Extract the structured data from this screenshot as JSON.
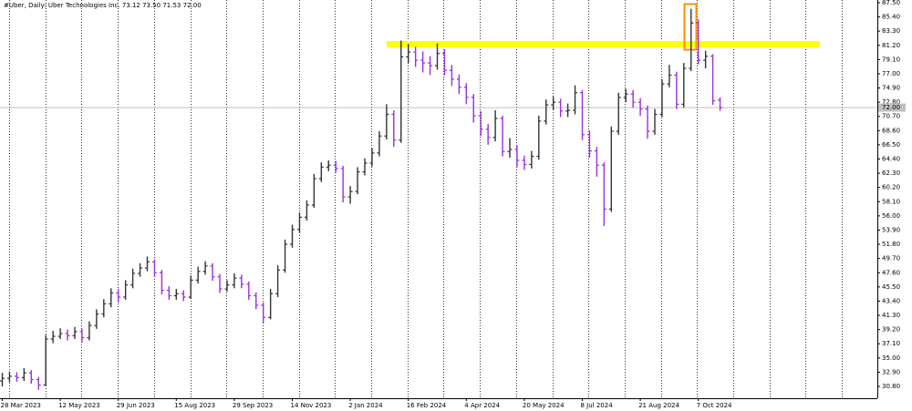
{
  "chart_data": {
    "type": "ohlc",
    "title": "#Uber, Daily:  Uber Technologies Inc.  73.12 73.50 71.53 72.00",
    "categories": [
      "28 Mar 2023",
      null,
      null,
      null,
      null,
      null,
      null,
      null,
      "12 May 2023",
      null,
      null,
      null,
      null,
      null,
      null,
      null,
      "29 Jun 2023",
      null,
      null,
      null,
      null,
      null,
      null,
      null,
      "15 Aug 2023",
      null,
      null,
      null,
      null,
      null,
      null,
      null,
      "29 Sep 2023",
      null,
      null,
      null,
      null,
      null,
      null,
      null,
      "14 Nov 2023",
      null,
      null,
      null,
      null,
      null,
      null,
      null,
      "2 Jan 2024",
      null,
      null,
      null,
      null,
      null,
      null,
      null,
      "16 Feb 2024",
      null,
      null,
      null,
      null,
      null,
      null,
      null,
      "4 Apr 2024",
      null,
      null,
      null,
      null,
      null,
      null,
      null,
      "20 May 2024",
      null,
      null,
      null,
      null,
      null,
      null,
      null,
      "8 Jul 2024",
      null,
      null,
      null,
      null,
      null,
      null,
      null,
      "21 Aug 2024",
      null,
      null,
      null,
      null,
      null,
      null,
      null,
      "7 Oct 2024",
      null,
      null,
      null
    ],
    "series": {
      "up_color": "#333333",
      "down_color": "#9b30d9",
      "open": [
        31.6,
        32.0,
        32.3,
        32.1,
        32.8,
        31.8,
        31.0,
        37.8,
        38.2,
        38.6,
        38.3,
        38.9,
        38.0,
        39.8,
        41.5,
        43.0,
        44.6,
        44.0,
        45.8,
        47.5,
        48.3,
        49.2,
        47.6,
        45.0,
        44.2,
        44.5,
        44.0,
        46.5,
        47.8,
        48.6,
        47.0,
        45.2,
        45.8,
        46.8,
        45.9,
        44.2,
        42.8,
        41.0,
        44.5,
        48.0,
        51.8,
        54.0,
        55.8,
        57.6,
        61.5,
        63.2,
        63.5,
        63.0,
        58.8,
        59.6,
        62.5,
        63.8,
        65.3,
        67.8,
        71.0,
        67.2,
        79.5,
        80.2,
        79.0,
        78.6,
        78.2,
        80.0,
        77.5,
        76.2,
        75.0,
        73.5,
        70.8,
        68.8,
        67.6,
        70.4,
        65.5,
        65.8,
        64.2,
        63.6,
        64.8,
        70.0,
        72.4,
        72.8,
        71.5,
        71.6,
        74.2,
        68.0,
        65.6,
        63.5,
        57.0,
        68.5,
        73.5,
        74.0,
        72.8,
        71.8,
        68.5,
        71.0,
        75.5,
        76.8,
        72.5,
        77.8,
        84.5,
        79.0,
        79.6,
        73.12
      ],
      "high": [
        32.8,
        33.0,
        32.9,
        33.5,
        33.2,
        32.2,
        38.4,
        39.0,
        39.4,
        39.2,
        39.6,
        39.3,
        40.4,
        42.2,
        43.7,
        45.3,
        45.2,
        46.5,
        48.2,
        49.0,
        50.0,
        49.6,
        48.0,
        45.6,
        45.2,
        45.0,
        47.2,
        48.5,
        49.3,
        49.0,
        47.4,
        46.5,
        47.5,
        47.3,
        46.3,
        44.7,
        43.2,
        45.2,
        48.7,
        52.5,
        54.7,
        56.5,
        58.3,
        62.2,
        63.9,
        64.2,
        64.1,
        63.4,
        60.4,
        63.2,
        64.5,
        66.0,
        68.5,
        72.5,
        71.6,
        81.9,
        81.4,
        81.0,
        80.3,
        79.6,
        81.5,
        80.6,
        78.3,
        76.9,
        75.6,
        74.0,
        71.5,
        69.6,
        71.6,
        70.8,
        67.5,
        66.4,
        64.9,
        65.6,
        70.8,
        73.2,
        73.6,
        73.3,
        72.6,
        75.3,
        74.6,
        68.6,
        66.2,
        63.9,
        69.2,
        74.2,
        74.8,
        74.6,
        73.4,
        72.3,
        71.8,
        76.2,
        78.3,
        77.3,
        78.6,
        86.6,
        85.0,
        80.4,
        79.9,
        73.5
      ],
      "low": [
        30.8,
        31.4,
        31.5,
        31.6,
        31.2,
        30.3,
        30.9,
        37.2,
        37.8,
        37.6,
        37.8,
        37.3,
        37.6,
        39.3,
        41.0,
        42.5,
        43.2,
        43.6,
        45.3,
        47.0,
        47.8,
        47.0,
        44.4,
        43.6,
        43.6,
        43.4,
        43.7,
        46.0,
        47.3,
        46.4,
        44.6,
        44.8,
        45.3,
        45.3,
        43.6,
        42.2,
        40.2,
        40.7,
        44.0,
        47.6,
        51.3,
        53.5,
        55.3,
        57.2,
        61.0,
        62.6,
        62.4,
        58.0,
        57.8,
        59.2,
        62.0,
        63.3,
        64.8,
        67.3,
        66.2,
        66.8,
        78.6,
        78.0,
        77.2,
        76.8,
        77.6,
        76.8,
        75.2,
        74.0,
        72.5,
        69.8,
        67.8,
        66.5,
        67.0,
        64.8,
        64.6,
        63.2,
        62.8,
        63.0,
        64.3,
        69.5,
        71.6,
        70.6,
        70.6,
        71.0,
        67.2,
        64.6,
        61.8,
        54.5,
        56.6,
        68.0,
        72.8,
        72.0,
        70.8,
        67.4,
        68.0,
        70.6,
        75.0,
        71.8,
        72.0,
        77.4,
        78.4,
        77.8,
        72.4,
        71.53
      ],
      "close": [
        32.0,
        32.3,
        32.1,
        32.8,
        31.8,
        31.0,
        37.8,
        38.2,
        38.6,
        38.3,
        38.9,
        38.0,
        39.8,
        41.5,
        43.0,
        44.6,
        44.0,
        45.8,
        47.5,
        48.3,
        49.2,
        47.6,
        45.0,
        44.2,
        44.5,
        44.0,
        46.5,
        47.8,
        48.6,
        47.0,
        45.2,
        45.8,
        46.8,
        45.9,
        44.2,
        42.8,
        41.0,
        44.5,
        48.0,
        51.8,
        54.0,
        55.8,
        57.6,
        61.5,
        63.2,
        63.5,
        63.0,
        58.8,
        59.6,
        62.5,
        63.8,
        65.3,
        67.8,
        71.0,
        67.2,
        79.5,
        80.2,
        79.0,
        78.6,
        78.2,
        80.0,
        77.5,
        76.2,
        75.0,
        73.5,
        70.8,
        68.8,
        67.6,
        70.4,
        65.5,
        65.8,
        64.2,
        63.6,
        64.8,
        70.0,
        72.4,
        72.8,
        71.5,
        71.6,
        74.2,
        68.0,
        65.6,
        63.5,
        57.0,
        68.5,
        73.5,
        74.0,
        72.8,
        71.8,
        68.5,
        71.0,
        75.5,
        76.8,
        72.5,
        77.8,
        84.5,
        79.0,
        79.6,
        73.0,
        72.0
      ]
    },
    "last_price_label": "72.00",
    "ylim": [
      29.05,
      87.9
    ],
    "yticks": [
      {
        "value": 87.5,
        "label": "87.50"
      },
      {
        "value": 85.4,
        "label": "85.40"
      },
      {
        "value": 83.3,
        "label": "83.30"
      },
      {
        "value": 81.2,
        "label": "81.20"
      },
      {
        "value": 79.1,
        "label": "79.10"
      },
      {
        "value": 77,
        "label": "77.00"
      },
      {
        "value": 74.9,
        "label": "74.90"
      },
      {
        "value": 72.8,
        "label": "72.80"
      },
      {
        "value": 70.7,
        "label": "70.70"
      },
      {
        "value": 68.6,
        "label": "68.60"
      },
      {
        "value": 66.5,
        "label": "66.50"
      },
      {
        "value": 64.4,
        "label": "64.40"
      },
      {
        "value": 62.3,
        "label": "62.30"
      },
      {
        "value": 60.2,
        "label": "60.20"
      },
      {
        "value": 58.1,
        "label": "58.10"
      },
      {
        "value": 56,
        "label": "56.00"
      },
      {
        "value": 53.9,
        "label": "53.90"
      },
      {
        "value": 51.8,
        "label": "51.80"
      },
      {
        "value": 49.7,
        "label": "49.70"
      },
      {
        "value": 47.6,
        "label": "47.60"
      },
      {
        "value": 45.5,
        "label": "45.50"
      },
      {
        "value": 43.4,
        "label": "43.40"
      },
      {
        "value": 41.3,
        "label": "41.30"
      },
      {
        "value": 39.2,
        "label": "39.20"
      },
      {
        "value": 37.1,
        "label": "37.10"
      },
      {
        "value": 35,
        "label": "35.00"
      },
      {
        "value": 32.9,
        "label": "32.90"
      },
      {
        "value": 30.8,
        "label": "30.80"
      }
    ]
  }
}
